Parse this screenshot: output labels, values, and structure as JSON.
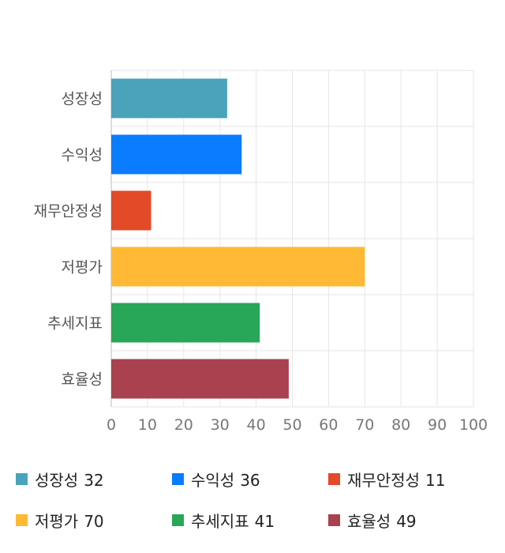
{
  "chart_data": {
    "type": "bar",
    "orientation": "horizontal",
    "categories": [
      "성장성",
      "수익성",
      "재무안정성",
      "저평가",
      "추세지표",
      "효율성"
    ],
    "values": [
      32,
      36,
      11,
      70,
      41,
      49
    ],
    "colors": [
      "#4aa3ba",
      "#0a7cff",
      "#e24a28",
      "#ffb935",
      "#27a757",
      "#a9424e"
    ],
    "xlim": [
      0,
      100
    ],
    "xticks": [
      0,
      10,
      20,
      30,
      40,
      50,
      60,
      70,
      80,
      90,
      100
    ],
    "grid": true,
    "legend_position": "bottom"
  },
  "legend": [
    {
      "label": "성장성",
      "value": "32",
      "color": "#4aa3ba"
    },
    {
      "label": "수익성",
      "value": "36",
      "color": "#0a7cff"
    },
    {
      "label": "재무안정성",
      "value": "11",
      "color": "#e24a28"
    },
    {
      "label": "저평가",
      "value": "70",
      "color": "#ffb935"
    },
    {
      "label": "추세지표",
      "value": "41",
      "color": "#27a757"
    },
    {
      "label": "효율성",
      "value": "49",
      "color": "#a9424e"
    }
  ]
}
